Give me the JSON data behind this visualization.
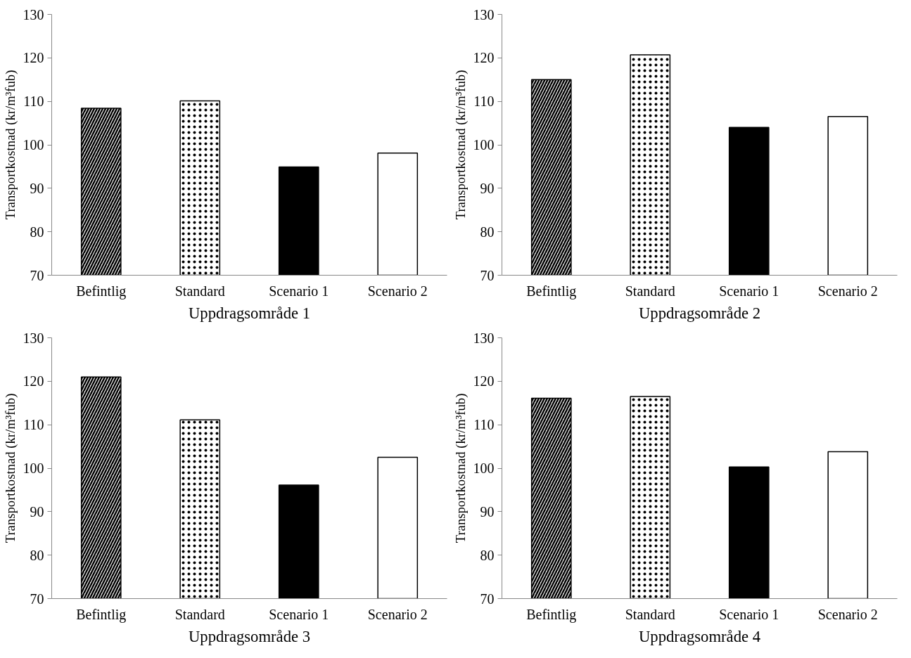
{
  "chart_data": [
    {
      "type": "bar",
      "xlabel": "Uppdragsområde 1",
      "ylabel": "Transportkostnad (kr/m³fub)",
      "categories": [
        "Befintlig",
        "Standard",
        "Scenario 1",
        "Scenario 2"
      ],
      "values": [
        108.4,
        110.1,
        94.9,
        98.1
      ],
      "colors": [
        "#ffffff",
        "#ffffff",
        "#000000",
        "#ffffff"
      ],
      "ylim": [
        70,
        130
      ],
      "yticks": [
        70,
        80,
        90,
        100,
        110,
        120,
        130
      ],
      "grid": false
    },
    {
      "type": "bar",
      "xlabel": "Uppdragsområde 2",
      "ylabel": "Transportkostnad (kr/m³fub)",
      "categories": [
        "Befintlig",
        "Standard",
        "Scenario 1",
        "Scenario 2"
      ],
      "values": [
        115.0,
        120.7,
        104.0,
        106.5
      ],
      "colors": [
        "#ffffff",
        "#ffffff",
        "#000000",
        "#ffffff"
      ],
      "ylim": [
        70,
        130
      ],
      "yticks": [
        70,
        80,
        90,
        100,
        110,
        120,
        130
      ],
      "grid": false
    },
    {
      "type": "bar",
      "xlabel": "Uppdragsområde 3",
      "ylabel": "Transportkostnad (kr/m³fub)",
      "categories": [
        "Befintlig",
        "Standard",
        "Scenario 1",
        "Scenario 2"
      ],
      "values": [
        121.0,
        111.1,
        96.1,
        102.5
      ],
      "colors": [
        "#ffffff",
        "#ffffff",
        "#000000",
        "#ffffff"
      ],
      "ylim": [
        70,
        130
      ],
      "yticks": [
        70,
        80,
        90,
        100,
        110,
        120,
        130
      ],
      "grid": false
    },
    {
      "type": "bar",
      "xlabel": "Uppdragsområde 4",
      "ylabel": "Transportkostnad (kr/m³fub)",
      "categories": [
        "Befintlig",
        "Standard",
        "Scenario 1",
        "Scenario 2"
      ],
      "values": [
        116.1,
        116.5,
        100.3,
        103.8
      ],
      "colors": [
        "#ffffff",
        "#ffffff",
        "#000000",
        "#ffffff"
      ],
      "ylim": [
        70,
        130
      ],
      "yticks": [
        70,
        80,
        90,
        100,
        110,
        120,
        130
      ],
      "grid": false
    }
  ]
}
